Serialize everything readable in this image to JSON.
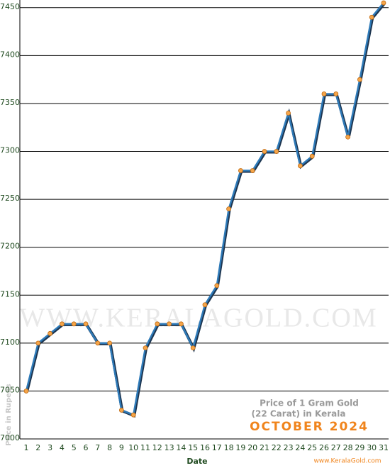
{
  "chart_data": {
    "type": "line",
    "x_axis_label": "Date",
    "y_axis_label": "Price in Rupees",
    "annotation": [
      "Price of 1 Gram Gold",
      "(22 Carat) in Kerala"
    ],
    "subtitle": "OCTOBER 2024",
    "watermark": "WWW.KERALAGOLD.COM",
    "credit": "www.KeralaGold.com",
    "categories": [
      "1",
      "2",
      "3",
      "4",
      "5",
      "6",
      "7",
      "8",
      "9",
      "10",
      "11",
      "12",
      "13",
      "14",
      "15",
      "16",
      "17",
      "18",
      "19",
      "20",
      "21",
      "22",
      "23",
      "24",
      "25",
      "26",
      "27",
      "28",
      "29",
      "30",
      "31"
    ],
    "series": [
      {
        "name": "Price",
        "color": "#2e7ab8",
        "values": [
          7050,
          7100,
          7110,
          7120,
          7120,
          7120,
          7100,
          7100,
          7030,
          7025,
          7095,
          7120,
          7120,
          7120,
          7095,
          7140,
          7160,
          7240,
          7280,
          7280,
          7300,
          7300,
          7340,
          7285,
          7295,
          7360,
          7360,
          7315,
          7375,
          7440,
          7455
        ]
      }
    ],
    "ylim": [
      7000,
      7458
    ],
    "yticks": [
      7000,
      7050,
      7100,
      7150,
      7200,
      7250,
      7300,
      7350,
      7400,
      7450
    ],
    "grid": true
  }
}
